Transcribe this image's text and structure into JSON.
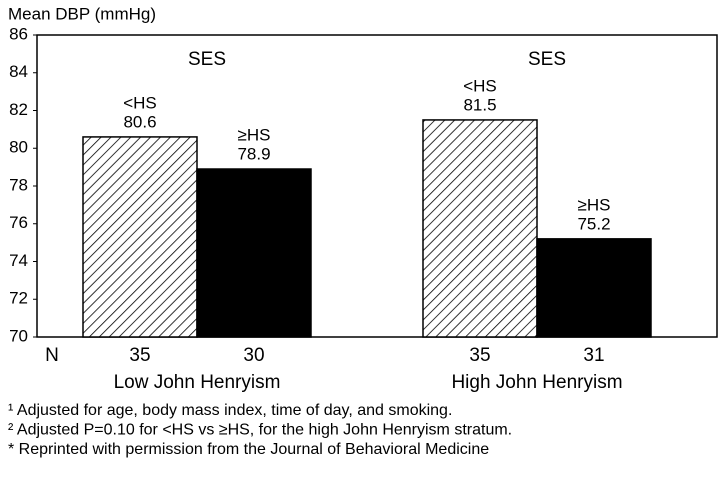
{
  "chart_data": {
    "type": "bar",
    "ylabel": "Mean DBP (mmHg)",
    "group_header": "SES",
    "n_label": "N",
    "categories": [
      "Low John Henryism",
      "High John Henryism"
    ],
    "series": [
      {
        "name": "<HS",
        "color": "hatched",
        "values": [
          80.6,
          81.5
        ],
        "n": [
          35,
          35
        ]
      },
      {
        "name": "≥HS",
        "color": "#000000",
        "values": [
          78.9,
          75.2
        ],
        "n": [
          30,
          31
        ]
      }
    ],
    "ylim": [
      70,
      86
    ],
    "yticks": [
      70,
      72,
      74,
      76,
      78,
      80,
      82,
      84,
      86
    ],
    "footnotes": [
      "¹ Adjusted for age, body mass index, time of day, and smoking.",
      "² Adjusted P=0.10 for <HS vs ≥HS, for the high John Henryism stratum.",
      "* Reprinted with permission from the Journal of Behavioral Medicine"
    ]
  }
}
